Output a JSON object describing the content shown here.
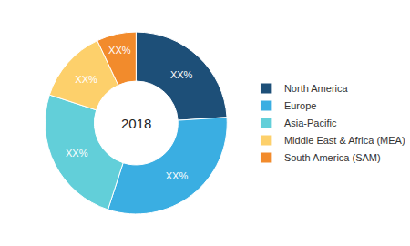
{
  "chart_data": {
    "type": "pie",
    "categories": [
      "North America",
      "Europe",
      "Asia-Pacific",
      "Middle East & Africa (MEA)",
      "South America (SAM)"
    ],
    "values": [
      24,
      31,
      25,
      13,
      7
    ],
    "value_labels": [
      "XX%",
      "XX%",
      "XX%",
      "XX%",
      "XX%"
    ],
    "colors": [
      "#1d4f78",
      "#3aaee2",
      "#62cfd9",
      "#fdd06b",
      "#f28b2c"
    ],
    "data_labels": true,
    "legend": "right",
    "annotations": [
      "2018"
    ]
  }
}
